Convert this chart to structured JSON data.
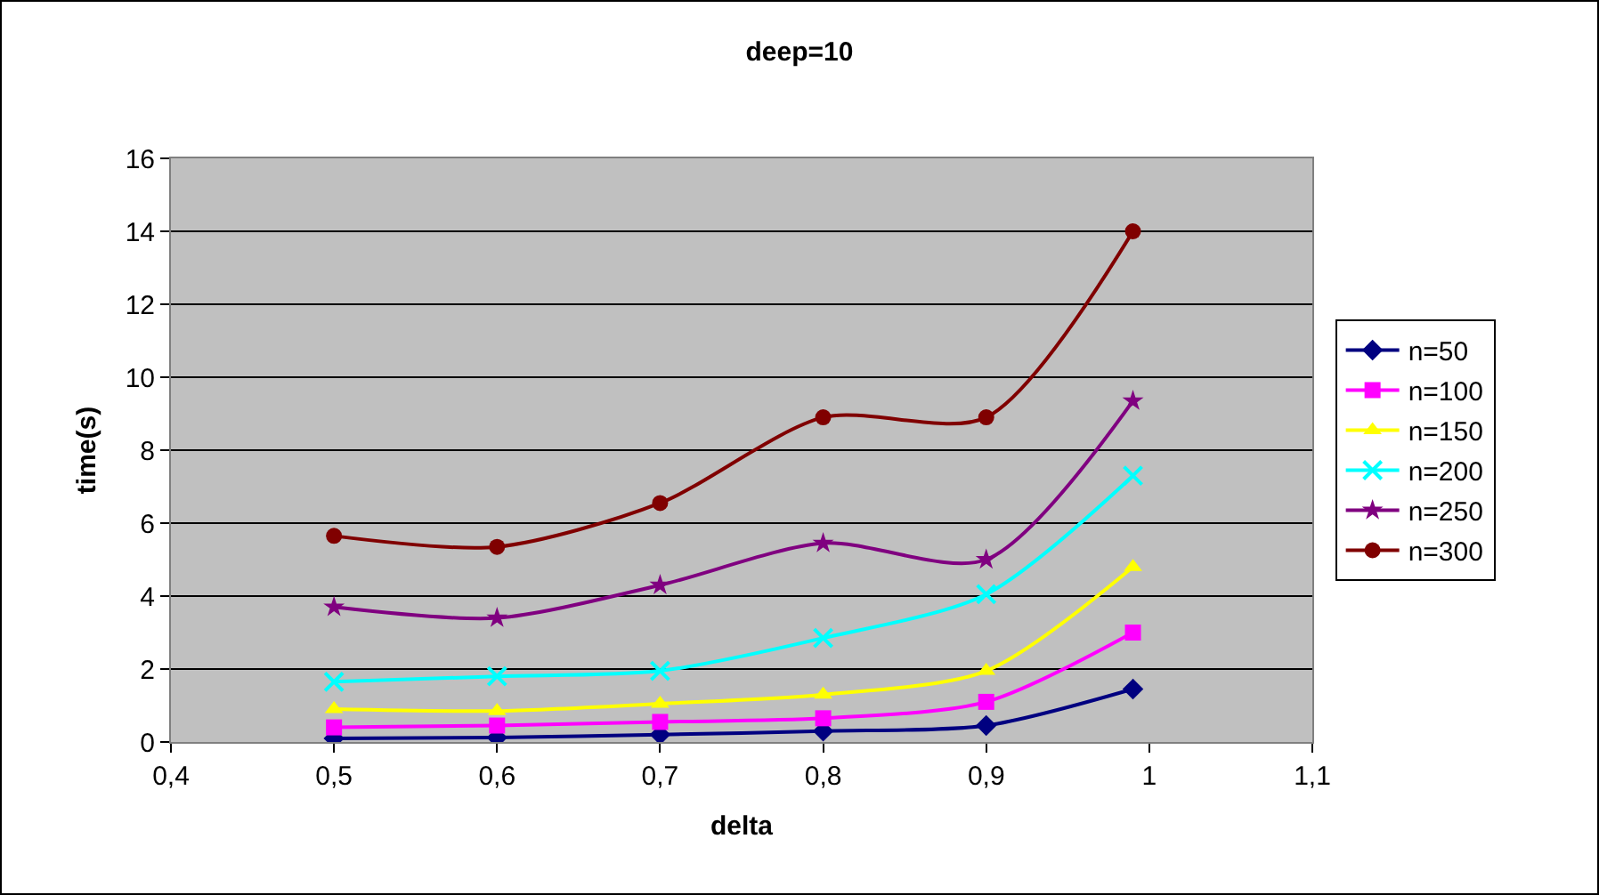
{
  "chart_data": {
    "type": "line",
    "title": "deep=10",
    "xlabel": "delta",
    "ylabel": "time(s)",
    "x": [
      0.5,
      0.6,
      0.7,
      0.8,
      0.9,
      0.99
    ],
    "series": [
      {
        "name": "n=50",
        "color": "#000080",
        "marker": "diamond",
        "values": [
          0.1,
          0.12,
          0.2,
          0.3,
          0.45,
          1.45
        ]
      },
      {
        "name": "n=100",
        "color": "#ff00ff",
        "marker": "square",
        "values": [
          0.4,
          0.45,
          0.55,
          0.65,
          1.1,
          3.0
        ]
      },
      {
        "name": "n=150",
        "color": "#ffff00",
        "marker": "triangle",
        "values": [
          0.9,
          0.85,
          1.05,
          1.3,
          1.95,
          4.8
        ]
      },
      {
        "name": "n=200",
        "color": "#00ffff",
        "marker": "cross",
        "values": [
          1.65,
          1.8,
          1.95,
          2.85,
          4.05,
          7.3
        ]
      },
      {
        "name": "n=250",
        "color": "#800080",
        "marker": "star",
        "values": [
          3.7,
          3.4,
          4.3,
          5.45,
          5.0,
          9.35
        ]
      },
      {
        "name": "n=300",
        "color": "#800000",
        "marker": "circle",
        "values": [
          5.65,
          5.35,
          6.55,
          8.9,
          8.9,
          14.0
        ]
      }
    ],
    "xlim": [
      0.4,
      1.1
    ],
    "xticks": [
      {
        "value": 0.4,
        "label": "0,4"
      },
      {
        "value": 0.5,
        "label": "0,5"
      },
      {
        "value": 0.6,
        "label": "0,6"
      },
      {
        "value": 0.7,
        "label": "0,7"
      },
      {
        "value": 0.8,
        "label": "0,8"
      },
      {
        "value": 0.9,
        "label": "0,9"
      },
      {
        "value": 1,
        "label": "1"
      },
      {
        "value": 1.1,
        "label": "1,1"
      }
    ],
    "ylim": [
      0,
      16
    ],
    "yticks": [
      0,
      2,
      4,
      6,
      8,
      10,
      12,
      14,
      16
    ],
    "grid": "y",
    "legend": "right",
    "line_style": "solid"
  }
}
